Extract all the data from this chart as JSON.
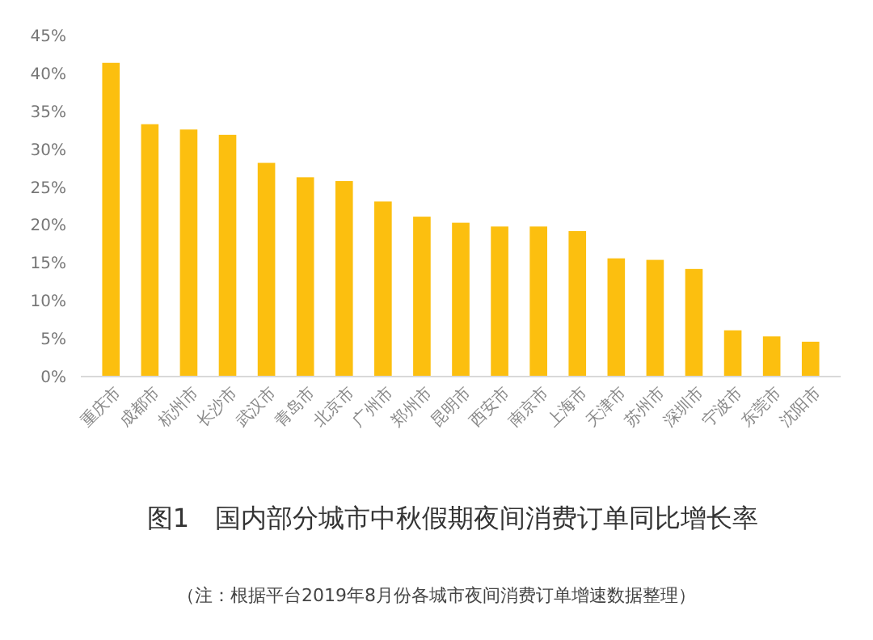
{
  "chart_data": {
    "type": "bar",
    "title": "图1　国内部分城市中秋假期夜间消费订单同比增长率",
    "categories": [
      "重庆市",
      "成都市",
      "杭州市",
      "长沙市",
      "武汉市",
      "青岛市",
      "北京市",
      "广州市",
      "郑州市",
      "昆明市",
      "西安市",
      "南京市",
      "上海市",
      "天津市",
      "苏州市",
      "深圳市",
      "宁波市",
      "东莞市",
      "沈阳市"
    ],
    "values": [
      41.4,
      33.3,
      32.6,
      31.9,
      28.2,
      26.3,
      25.8,
      23.1,
      21.1,
      20.3,
      19.8,
      19.8,
      19.2,
      15.6,
      15.4,
      14.2,
      6.1,
      5.3,
      4.6
    ],
    "color": "#fcbf0f",
    "ylim": [
      0,
      45
    ],
    "yticks": [
      {
        "value": 0,
        "label": "0%"
      },
      {
        "value": 5,
        "label": "5%"
      },
      {
        "value": 10,
        "label": "10%"
      },
      {
        "value": 15,
        "label": "15%"
      },
      {
        "value": 20,
        "label": "20%"
      },
      {
        "value": 25,
        "label": "25%"
      },
      {
        "value": 30,
        "label": "30%"
      },
      {
        "value": 35,
        "label": "35%"
      },
      {
        "value": 40,
        "label": "40%"
      },
      {
        "value": 45,
        "label": "45%"
      }
    ],
    "annotations": [
      "（注：根据平台2019年8月份各城市夜间消费订单增速数据整理）"
    ]
  }
}
